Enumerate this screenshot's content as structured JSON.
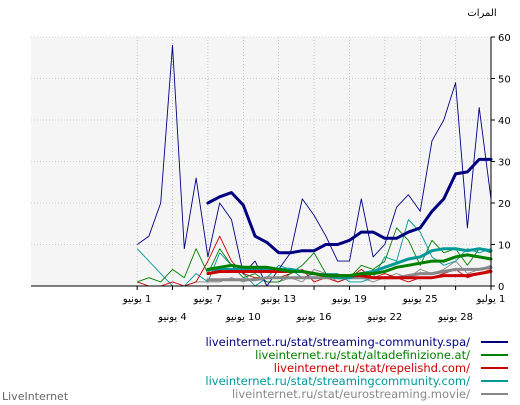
{
  "brand": "LiveInternet",
  "chart_data": {
    "type": "line",
    "ylabel": "المرات",
    "ylim": [
      0,
      60
    ],
    "yticks": [
      0,
      10,
      20,
      30,
      40,
      50,
      60
    ],
    "x_direction": "right-to-left",
    "x_count": 40,
    "xticks": [
      {
        "i": 0,
        "label": "1 يوليو"
      },
      {
        "i": 3,
        "label": "28 يونيو"
      },
      {
        "i": 6,
        "label": "25 يونيو"
      },
      {
        "i": 9,
        "label": "22 يونيو"
      },
      {
        "i": 12,
        "label": "19 يونيو"
      },
      {
        "i": 15,
        "label": "16 يونيو"
      },
      {
        "i": 18,
        "label": "13 يونيو"
      },
      {
        "i": 21,
        "label": "10 يونيو"
      },
      {
        "i": 24,
        "label": "7 يونيو"
      },
      {
        "i": 27,
        "label": "4 يونيو"
      },
      {
        "i": 30,
        "label": "1 يونيو"
      }
    ],
    "grid": true,
    "legend_position": "bottom-right",
    "series": [
      {
        "name": "liveinternet.ru/stat/streaming-community.spa/",
        "color": "#000080",
        "values": [
          21,
          43,
          14,
          49,
          40,
          35,
          18,
          22,
          19,
          10,
          7,
          21,
          6,
          6,
          12,
          17,
          21,
          8,
          4,
          0,
          6,
          3,
          16,
          20,
          7,
          26,
          9,
          58,
          20,
          12,
          10
        ],
        "avg": [
          30.5,
          30.5,
          27.5,
          27,
          21,
          18,
          14,
          13,
          11.5,
          11.5,
          13,
          13,
          11,
          10,
          10,
          8.5,
          8.5,
          8,
          8,
          10.5,
          12,
          19.5,
          22.5,
          21.5,
          20
        ]
      },
      {
        "name": "liveinternet.ru/stat/altadefinizione.at/",
        "color": "#008000",
        "values": [
          8,
          9,
          5,
          9,
          8,
          11,
          5,
          11,
          14,
          6,
          4,
          5,
          2,
          2,
          3,
          8,
          5,
          3,
          1,
          1,
          3,
          2,
          5,
          9,
          3,
          9,
          2,
          4,
          1,
          2,
          1
        ],
        "avg": [
          6.5,
          7,
          7.5,
          7,
          6,
          6,
          5.5,
          5,
          4.5,
          3.5,
          3,
          3,
          2.5,
          2.5,
          2.5,
          3,
          3.5,
          3.5,
          4,
          4.5,
          4.5,
          4.5,
          5,
          4.5,
          4
        ]
      },
      {
        "name": "liveinternet.ru/stat/repelishd.com/",
        "color": "#cc0000",
        "values": [
          4,
          3,
          2,
          4,
          3,
          2,
          2,
          1,
          2,
          3,
          2,
          4,
          2,
          1,
          2,
          1,
          4,
          3,
          2,
          2,
          2,
          3,
          6,
          12,
          6,
          1,
          0,
          1,
          0,
          0,
          1
        ],
        "avg": [
          3.5,
          3,
          2.5,
          2.5,
          2.5,
          2,
          2,
          2,
          2,
          2,
          2,
          2.5,
          2.5,
          2.5,
          2.5,
          3,
          3.5,
          3.5,
          3.5,
          3.5,
          3.5,
          3.5,
          3.5,
          3.5,
          3
        ]
      },
      {
        "name": "liveinternet.ru/stat/streamingcommunity.com/",
        "color": "#009999",
        "values": [
          9,
          8,
          9,
          6,
          5,
          7,
          13,
          16,
          6,
          7,
          2,
          1,
          1,
          3,
          3,
          3,
          2,
          4,
          5,
          2,
          0,
          3,
          5,
          8,
          1,
          3,
          0,
          0,
          3,
          6,
          9
        ],
        "avg": [
          8.5,
          9,
          8.5,
          9,
          9,
          8.5,
          7,
          6.5,
          5.5,
          4.5,
          3.5,
          3,
          2,
          2,
          2.5,
          3,
          3.5,
          4,
          4,
          4,
          4,
          4,
          4,
          4,
          4
        ]
      },
      {
        "name": "liveinternet.ru/stat/eurostreaming.movie/",
        "color": "#888888",
        "values": [
          5,
          4,
          3,
          6,
          4,
          3,
          4,
          2,
          3,
          2,
          1,
          2,
          2,
          1,
          3,
          4,
          1,
          2,
          1,
          1,
          2,
          1,
          2,
          1,
          1,
          1,
          0,
          0,
          0,
          0,
          0
        ],
        "avg": [
          4.5,
          4,
          4,
          4,
          3.5,
          3,
          3,
          2.5,
          2,
          2,
          2,
          2,
          2,
          2,
          2,
          2,
          2,
          2,
          2,
          2,
          1.5,
          1.5,
          1.5,
          1.5,
          1.5
        ]
      }
    ]
  }
}
